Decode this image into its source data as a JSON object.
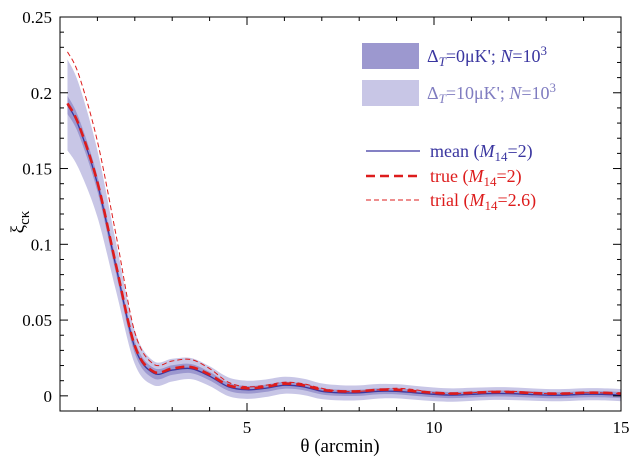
{
  "chart_data": {
    "type": "line",
    "title": "",
    "xlabel": "θ (arcmin)",
    "ylabel": "ξ",
    "ylabel_subscript": "cκ",
    "xlim": [
      0,
      15
    ],
    "ylim": [
      -0.01,
      0.25
    ],
    "xticks": [
      5,
      10,
      15
    ],
    "yticks": [
      0,
      0.05,
      0.1,
      0.15,
      0.2,
      0.25
    ],
    "xtick_labels": [
      "5",
      "10",
      "15"
    ],
    "ytick_labels": [
      "0",
      "0.05",
      "0.1",
      "0.15",
      "0.2",
      "0.25"
    ],
    "grid": false,
    "legend_position": "top-right",
    "colors": {
      "band_inner": "#9c98cf",
      "band_outer": "#c8c6e6",
      "mean": "#3a36a0",
      "true": "#dd1c1c",
      "trial": "#dd1c1c",
      "band_text_inner": "#3a36a0",
      "band_text_outer": "#7f7cc0"
    },
    "x": [
      0.2,
      0.5,
      1.0,
      1.5,
      2.0,
      2.5,
      3.0,
      3.5,
      4.0,
      4.5,
      5.0,
      5.5,
      6.0,
      6.5,
      7.0,
      7.5,
      8.0,
      8.5,
      9.0,
      9.5,
      10.0,
      10.5,
      11.0,
      11.5,
      12.0,
      12.5,
      13.0,
      13.5,
      14.0,
      14.5,
      15.0
    ],
    "series": [
      {
        "name": "mean (M14=2)",
        "style": "solid-thin",
        "values": [
          0.192,
          0.178,
          0.14,
          0.085,
          0.032,
          0.015,
          0.017,
          0.018,
          0.013,
          0.006,
          0.004,
          0.005,
          0.007,
          0.006,
          0.003,
          0.002,
          0.002,
          0.003,
          0.003,
          0.002,
          0.001,
          0.0005,
          0.001,
          0.0015,
          0.0015,
          0.001,
          0.0005,
          0.0005,
          0.001,
          0.001,
          0.0005
        ]
      },
      {
        "name": "true (M14=2)",
        "style": "dashed-thick",
        "values": [
          0.193,
          0.179,
          0.141,
          0.086,
          0.033,
          0.016,
          0.018,
          0.019,
          0.014,
          0.007,
          0.005,
          0.006,
          0.008,
          0.007,
          0.004,
          0.003,
          0.003,
          0.004,
          0.004,
          0.003,
          0.002,
          0.0015,
          0.002,
          0.0025,
          0.0025,
          0.002,
          0.0015,
          0.0015,
          0.002,
          0.002,
          0.0015
        ]
      },
      {
        "name": "trial (M14=2.6)",
        "style": "dashed-thin",
        "values": [
          0.227,
          0.212,
          0.168,
          0.106,
          0.042,
          0.021,
          0.023,
          0.024,
          0.018,
          0.009,
          0.006,
          0.007,
          0.009,
          0.008,
          0.005,
          0.003,
          0.003,
          0.004,
          0.005,
          0.004,
          0.002,
          0.0015,
          0.002,
          0.003,
          0.003,
          0.0025,
          0.0015,
          0.0015,
          0.002,
          0.002,
          0.0015
        ]
      }
    ],
    "bands": [
      {
        "name": "ΔT=10μK'; N=10^3",
        "half_width": [
          0.03,
          0.028,
          0.022,
          0.016,
          0.011,
          0.008,
          0.0075,
          0.007,
          0.0065,
          0.0062,
          0.006,
          0.0058,
          0.0056,
          0.0054,
          0.0052,
          0.005,
          0.0049,
          0.0048,
          0.0047,
          0.0046,
          0.0045,
          0.0044,
          0.0043,
          0.0042,
          0.0042,
          0.0041,
          0.004,
          0.004,
          0.004,
          0.004,
          0.004
        ]
      },
      {
        "name": "ΔT=0μK'; N=10^3",
        "half_width": [
          0.006,
          0.0055,
          0.005,
          0.0045,
          0.004,
          0.0035,
          0.0032,
          0.003,
          0.0028,
          0.0026,
          0.0025,
          0.0024,
          0.0023,
          0.0022,
          0.0021,
          0.002,
          0.002,
          0.002,
          0.002,
          0.002,
          0.002,
          0.002,
          0.002,
          0.002,
          0.002,
          0.002,
          0.002,
          0.002,
          0.002,
          0.002,
          0.002
        ]
      }
    ],
    "legend": {
      "band_outer_label": [
        "Δ",
        "T",
        "=10μK'; ",
        "N",
        "=10",
        "3"
      ],
      "band_inner_label": [
        "Δ",
        "T",
        "=0μK'; ",
        "N",
        "=10",
        "3"
      ],
      "mean_label": [
        "mean (",
        "M",
        "14",
        "=2)"
      ],
      "true_label": [
        "true (",
        "M",
        "14",
        "=2)"
      ],
      "trial_label": [
        "trial (",
        "M",
        "14",
        "=2.6)"
      ]
    }
  }
}
